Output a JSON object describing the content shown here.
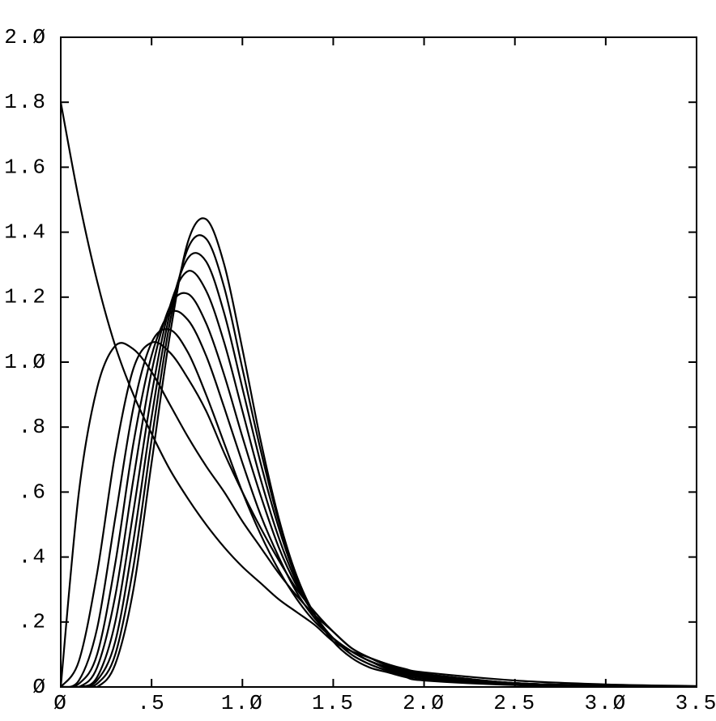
{
  "chart_data": {
    "type": "line",
    "x": [
      0,
      0.1,
      0.2,
      0.3,
      0.4,
      0.5,
      0.6,
      0.7,
      0.8,
      0.9,
      1.0,
      1.1,
      1.2,
      1.3,
      1.4,
      1.5,
      1.6,
      1.7,
      1.8,
      1.9,
      2.0,
      2.5,
      3.0,
      3.5
    ],
    "series": [
      {
        "color": "#000000",
        "values": [
          1.8,
          1.5,
          1.25,
          1.05,
          0.9,
          0.78,
          0.67,
          0.58,
          0.5,
          0.43,
          0.37,
          0.32,
          0.27,
          0.23,
          0.19,
          0.14,
          0.11,
          0.09,
          0.07,
          0.055,
          0.045,
          0.02,
          0.008,
          0.003
        ]
      },
      {
        "color": "#000000",
        "values": [
          0,
          0.6,
          0.92,
          1.05,
          1.04,
          0.97,
          0.87,
          0.77,
          0.68,
          0.6,
          0.51,
          0.43,
          0.35,
          0.28,
          0.22,
          0.17,
          0.12,
          0.09,
          0.07,
          0.05,
          0.04,
          0.012,
          0.004,
          0.001
        ]
      },
      {
        "color": "#000000",
        "values": [
          0,
          0.08,
          0.35,
          0.72,
          0.98,
          1.06,
          1.03,
          0.95,
          0.85,
          0.72,
          0.6,
          0.49,
          0.39,
          0.3,
          0.23,
          0.17,
          0.12,
          0.09,
          0.065,
          0.05,
          0.04,
          0.012,
          0.004,
          0.001
        ]
      },
      {
        "color": "#000000",
        "values": [
          0,
          0.02,
          0.18,
          0.52,
          0.86,
          1.06,
          1.1,
          1.03,
          0.9,
          0.75,
          0.6,
          0.47,
          0.36,
          0.27,
          0.2,
          0.15,
          0.11,
          0.08,
          0.06,
          0.045,
          0.035,
          0.012,
          0.004,
          0.001
        ]
      },
      {
        "color": "#000000",
        "values": [
          0,
          0.01,
          0.1,
          0.38,
          0.75,
          1.02,
          1.15,
          1.13,
          1.02,
          0.86,
          0.69,
          0.53,
          0.4,
          0.29,
          0.21,
          0.15,
          0.11,
          0.08,
          0.06,
          0.045,
          0.035,
          0.012,
          0.004,
          0.001
        ]
      },
      {
        "color": "#000000",
        "values": [
          0,
          0,
          0.06,
          0.28,
          0.64,
          0.97,
          1.17,
          1.21,
          1.12,
          0.96,
          0.77,
          0.59,
          0.43,
          0.31,
          0.22,
          0.15,
          0.11,
          0.08,
          0.06,
          0.045,
          0.035,
          0.012,
          0.004,
          0.001
        ]
      },
      {
        "color": "#000000",
        "values": [
          0,
          0,
          0.03,
          0.2,
          0.54,
          0.9,
          1.17,
          1.28,
          1.22,
          1.06,
          0.85,
          0.64,
          0.46,
          0.32,
          0.22,
          0.15,
          0.11,
          0.08,
          0.055,
          0.04,
          0.03,
          0.01,
          0.003,
          0.001
        ]
      },
      {
        "color": "#000000",
        "values": [
          0,
          0,
          0.02,
          0.14,
          0.45,
          0.83,
          1.15,
          1.32,
          1.31,
          1.15,
          0.92,
          0.69,
          0.49,
          0.33,
          0.22,
          0.15,
          0.1,
          0.07,
          0.05,
          0.04,
          0.03,
          0.01,
          0.003,
          0.001
        ]
      },
      {
        "color": "#000000",
        "values": [
          0,
          0,
          0.01,
          0.1,
          0.37,
          0.76,
          1.12,
          1.35,
          1.38,
          1.23,
          0.98,
          0.73,
          0.51,
          0.34,
          0.22,
          0.15,
          0.1,
          0.07,
          0.05,
          0.035,
          0.025,
          0.008,
          0.002,
          0
        ]
      },
      {
        "color": "#000000",
        "values": [
          0,
          0,
          0,
          0.07,
          0.3,
          0.69,
          1.08,
          1.37,
          1.44,
          1.3,
          1.04,
          0.76,
          0.52,
          0.34,
          0.22,
          0.14,
          0.09,
          0.06,
          0.045,
          0.03,
          0.02,
          0.006,
          0.002,
          0
        ]
      }
    ],
    "xlim": [
      0,
      3.5
    ],
    "ylim": [
      0,
      2.0
    ],
    "xticks": [
      {
        "value": 0,
        "label": "Ø"
      },
      {
        "value": 0.5,
        "label": ".5"
      },
      {
        "value": 1.0,
        "label": "1.Ø"
      },
      {
        "value": 1.5,
        "label": "1.5"
      },
      {
        "value": 2.0,
        "label": "2.Ø"
      },
      {
        "value": 2.5,
        "label": "2.5"
      },
      {
        "value": 3.0,
        "label": "3.Ø"
      },
      {
        "value": 3.5,
        "label": "3.5"
      }
    ],
    "yticks": [
      {
        "value": 0,
        "label": "Ø"
      },
      {
        "value": 0.2,
        "label": ".2"
      },
      {
        "value": 0.4,
        "label": ".4"
      },
      {
        "value": 0.6,
        "label": ".6"
      },
      {
        "value": 0.8,
        "label": ".8"
      },
      {
        "value": 1.0,
        "label": "1.Ø"
      },
      {
        "value": 1.2,
        "label": "1.2"
      },
      {
        "value": 1.4,
        "label": "1.4"
      },
      {
        "value": 1.6,
        "label": "1.6"
      },
      {
        "value": 1.8,
        "label": "1.8"
      },
      {
        "value": 2.0,
        "label": "2.Ø"
      }
    ],
    "grid": false
  }
}
